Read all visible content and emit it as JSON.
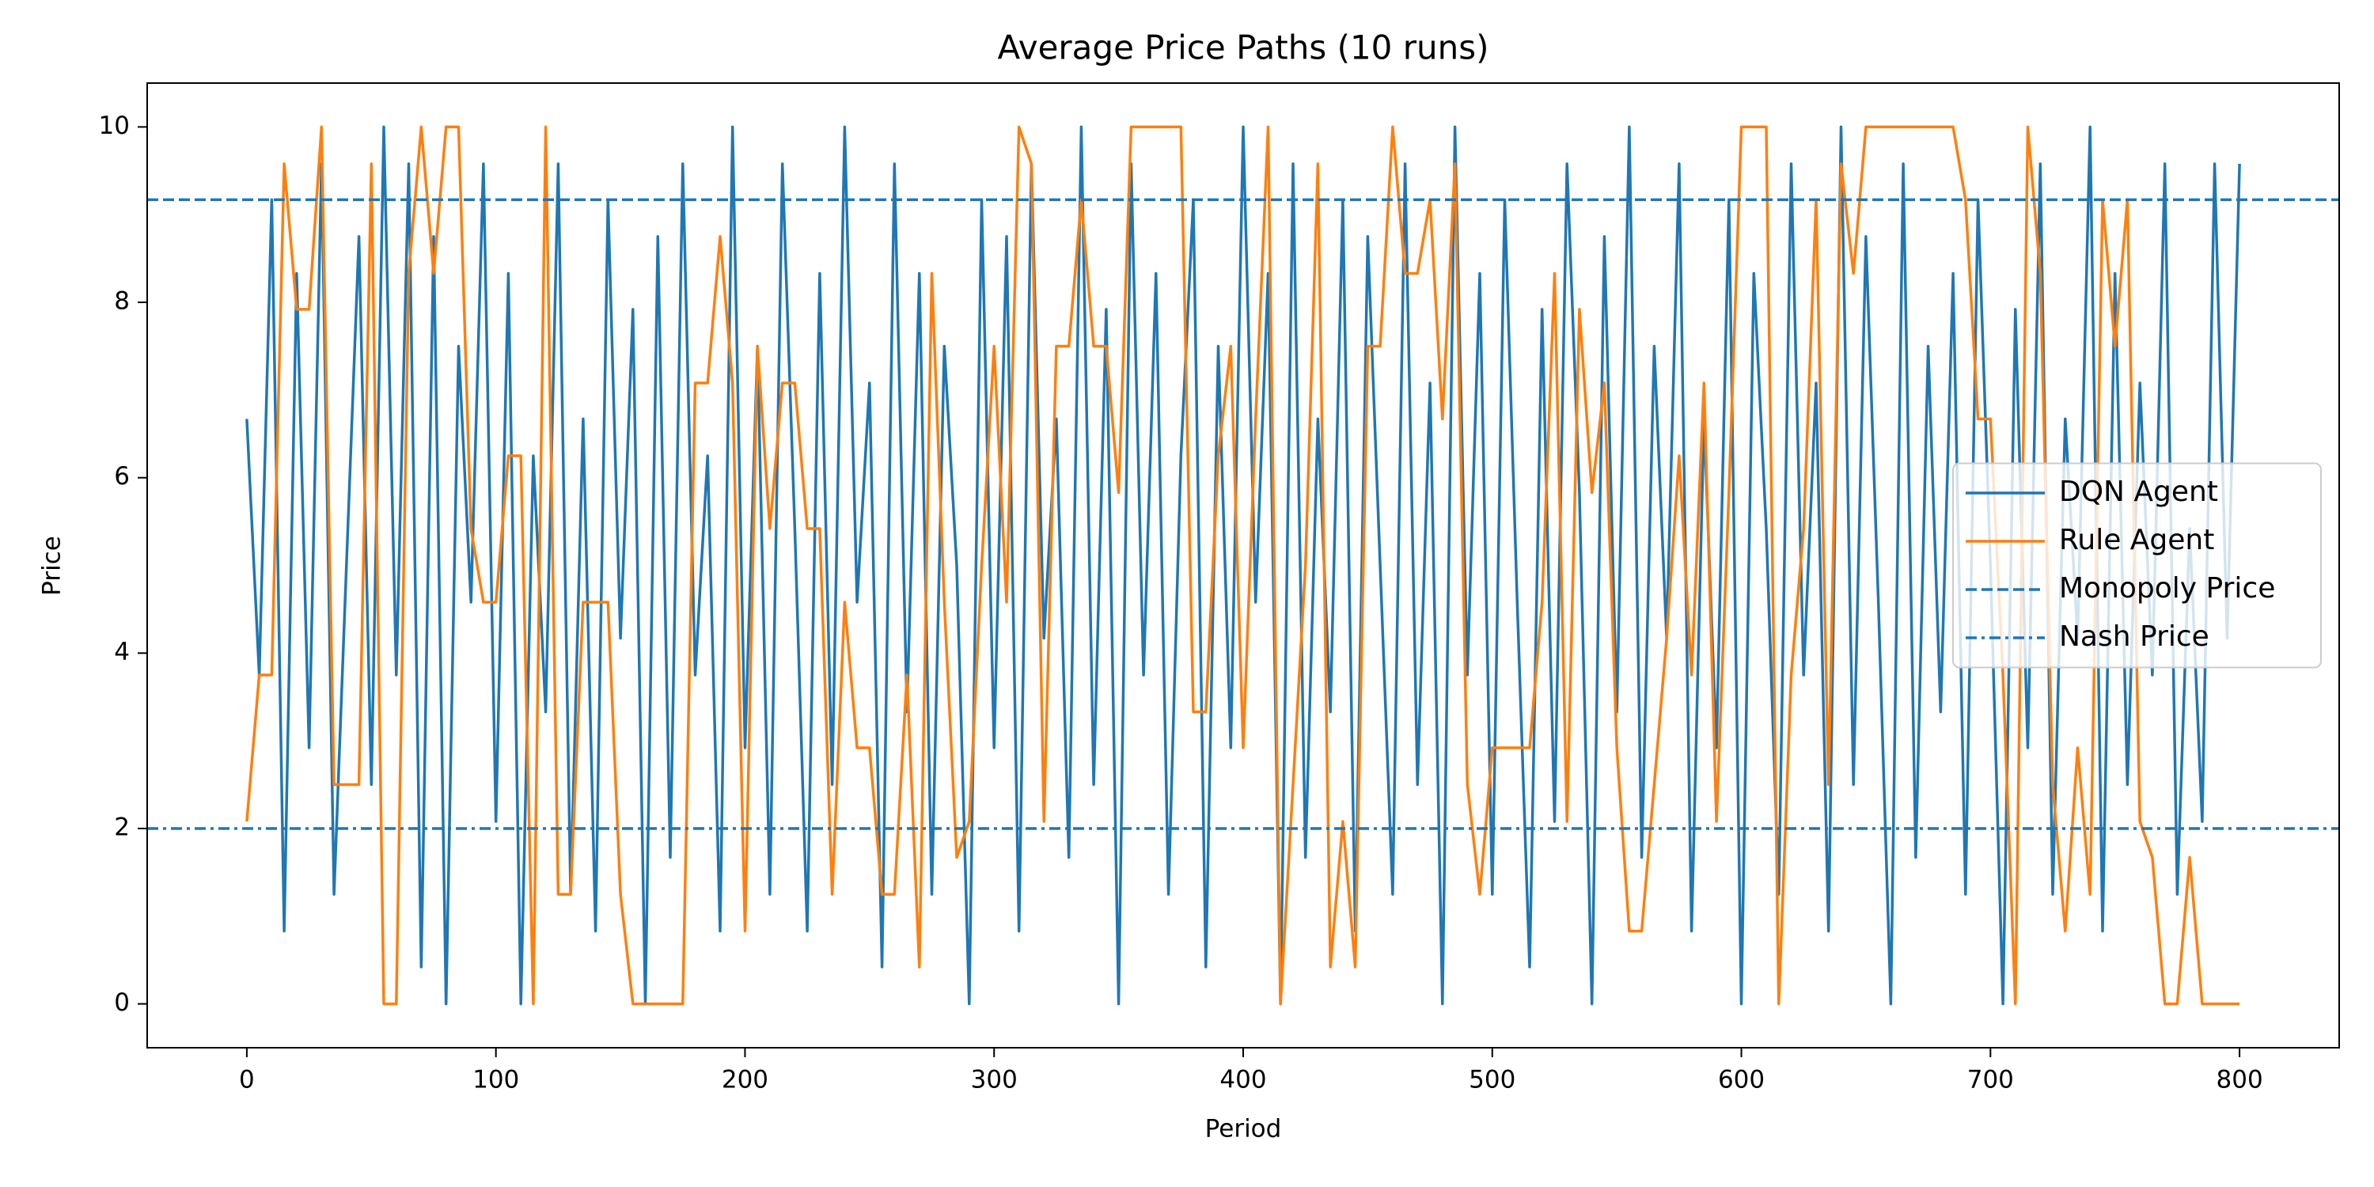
{
  "chart_data": {
    "type": "line",
    "title": "Average Price Paths (10 runs)",
    "x_label": "Period",
    "y_label": "Price",
    "x": [
      0,
      5,
      10,
      15,
      20,
      25,
      30,
      35,
      40,
      45,
      50,
      55,
      60,
      65,
      70,
      75,
      80,
      85,
      90,
      95,
      100,
      105,
      110,
      115,
      120,
      125,
      130,
      135,
      140,
      145,
      150,
      155,
      160,
      165,
      170,
      175,
      180,
      185,
      190,
      195,
      200,
      205,
      210,
      215,
      220,
      225,
      230,
      235,
      240,
      245,
      250,
      255,
      260,
      265,
      270,
      275,
      280,
      285,
      290,
      295,
      300,
      305,
      310,
      315,
      320,
      325,
      330,
      335,
      340,
      345,
      350,
      355,
      360,
      365,
      370,
      375,
      380,
      385,
      390,
      395,
      400,
      405,
      410,
      415,
      420,
      425,
      430,
      435,
      440,
      445,
      450,
      455,
      460,
      465,
      470,
      475,
      480,
      485,
      490,
      495,
      500,
      505,
      510,
      515,
      520,
      525,
      530,
      535,
      540,
      545,
      550,
      555,
      560,
      565,
      570,
      575,
      580,
      585,
      590,
      595,
      600,
      605,
      610,
      615,
      620,
      625,
      630,
      635,
      640,
      645,
      650,
      655,
      660,
      665,
      670,
      675,
      680,
      685,
      690,
      695,
      700,
      705,
      710,
      715,
      720,
      725,
      730,
      735,
      740,
      745,
      750,
      755,
      760,
      765,
      770,
      775,
      780,
      785,
      790,
      795,
      800
    ],
    "series": [
      {
        "name": "DQN Agent",
        "color": "#1f77b4",
        "linestyle": "solid",
        "values": [
          6.67,
          3.75,
          9.17,
          0.83,
          8.33,
          2.92,
          9.58,
          1.25,
          5.0,
          8.75,
          2.5,
          10,
          3.75,
          9.58,
          0.42,
          8.75,
          0,
          7.5,
          4.58,
          9.58,
          2.08,
          8.33,
          0,
          6.25,
          3.33,
          9.58,
          1.25,
          6.67,
          0.83,
          9.17,
          4.17,
          7.92,
          0,
          8.75,
          1.67,
          9.58,
          3.75,
          6.25,
          0.83,
          10,
          2.92,
          7.5,
          1.25,
          9.58,
          5.42,
          0.83,
          8.33,
          2.5,
          10,
          4.58,
          7.08,
          0.42,
          9.58,
          3.33,
          8.33,
          1.25,
          7.5,
          5.0,
          0,
          9.17,
          2.92,
          8.75,
          0.83,
          9.58,
          4.17,
          6.67,
          1.67,
          10,
          2.5,
          7.92,
          0,
          9.58,
          3.75,
          8.33,
          1.25,
          6.25,
          9.17,
          0.42,
          7.5,
          2.92,
          10,
          4.58,
          8.33,
          0,
          9.58,
          1.67,
          6.67,
          3.33,
          9.17,
          0.83,
          8.75,
          5.0,
          1.25,
          9.58,
          2.5,
          7.08,
          0,
          10,
          3.75,
          8.33,
          1.25,
          9.17,
          4.58,
          0.42,
          7.92,
          2.08,
          9.58,
          5.83,
          0,
          8.75,
          3.33,
          10,
          1.67,
          7.5,
          4.17,
          9.58,
          0.83,
          6.67,
          2.92,
          9.17,
          0,
          8.33,
          5.42,
          1.25,
          9.58,
          3.75,
          7.08,
          0.83,
          10,
          2.5,
          8.75,
          4.58,
          0,
          9.58,
          1.67,
          7.5,
          3.33,
          8.33,
          1.25,
          9.17,
          5.0,
          0,
          7.92,
          2.92,
          9.58,
          1.25,
          6.67,
          4.17,
          10,
          0.83,
          8.33,
          2.5,
          7.08,
          3.75,
          9.58,
          1.25,
          5.42,
          2.08,
          9.58,
          4.17,
          9.58
        ]
      },
      {
        "name": "Rule Agent",
        "color": "#ff7f0e",
        "linestyle": "solid",
        "values": [
          2.08,
          3.75,
          3.75,
          9.58,
          7.92,
          7.92,
          10,
          2.5,
          2.5,
          2.5,
          9.58,
          0,
          0,
          8.33,
          10,
          8.33,
          10,
          10,
          5.42,
          4.58,
          4.58,
          6.25,
          6.25,
          0,
          10,
          1.25,
          1.25,
          4.58,
          4.58,
          4.58,
          1.25,
          0,
          0,
          0,
          0,
          0,
          7.08,
          7.08,
          8.75,
          7.08,
          0.83,
          7.5,
          5.42,
          7.08,
          7.08,
          5.42,
          5.42,
          1.25,
          4.58,
          2.92,
          2.92,
          1.25,
          1.25,
          3.75,
          0.42,
          8.33,
          4.58,
          1.67,
          2.08,
          5.0,
          7.5,
          4.58,
          10,
          9.58,
          2.08,
          7.5,
          7.5,
          9.17,
          7.5,
          7.5,
          5.83,
          10,
          10,
          10,
          10,
          10,
          3.33,
          3.33,
          6.25,
          7.5,
          2.92,
          6.67,
          10,
          0,
          2.5,
          5.0,
          9.58,
          0.42,
          2.08,
          0.42,
          7.5,
          7.5,
          10,
          8.33,
          8.33,
          9.17,
          6.67,
          9.58,
          2.5,
          1.25,
          2.92,
          2.92,
          2.92,
          2.92,
          4.58,
          8.33,
          2.08,
          7.92,
          5.83,
          7.08,
          2.92,
          0.83,
          0.83,
          2.5,
          4.17,
          6.25,
          3.75,
          7.08,
          2.08,
          5.83,
          10,
          10,
          10,
          0,
          3.75,
          5.42,
          9.17,
          2.5,
          9.58,
          8.33,
          10,
          10,
          10,
          10,
          10,
          10,
          10,
          10,
          9.17,
          6.67,
          6.67,
          3.75,
          0,
          10,
          8.33,
          2.5,
          0.83,
          2.92,
          1.25,
          9.17,
          7.5,
          9.17,
          2.08,
          1.67,
          0,
          0,
          1.67,
          0,
          0,
          0,
          0
        ]
      },
      {
        "name": "Monopoly Price",
        "color": "#1f77b4",
        "linestyle": "dashed",
        "value": 9.17
      },
      {
        "name": "Nash Price",
        "color": "#1f77b4",
        "linestyle": "dashdot",
        "value": 2.0
      }
    ],
    "xlim": [
      -40,
      840
    ],
    "ylim": [
      -0.5,
      10.5
    ],
    "xticks": [
      0,
      100,
      200,
      300,
      400,
      500,
      600,
      700,
      800
    ],
    "yticks": [
      0,
      2,
      4,
      6,
      8,
      10
    ],
    "grid": false,
    "legend_loc": "center right"
  }
}
